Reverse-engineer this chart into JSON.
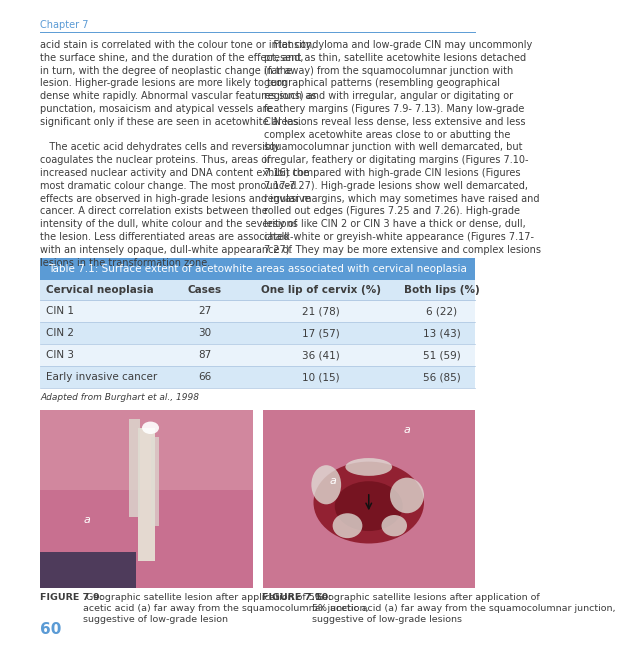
{
  "page_bg": "#ffffff",
  "header_text": "Chapter 7",
  "header_color": "#5b9bd5",
  "header_line_color": "#5b9bd5",
  "body_text_color": "#3d3d3d",
  "body_font_size": 7.0,
  "col1_text": "acid stain is correlated with the colour tone or intensity,\nthe surface shine, and the duration of the effect, and,\nin turn, with the degree of neoplastic change in the\nlesion. Higher-grade lesions are more likely to turn\ndense white rapidly. Abnormal vascular features such as\npunctation, mosaicism and atypical vessels are\nsignificant only if these are seen in acetowhite areas.\n\n   The acetic acid dehydrates cells and reversibly\ncoagulates the nuclear proteins. Thus, areas of\nincreased nuclear activity and DNA content exhibit the\nmost dramatic colour change. The most pronounced\neffects are observed in high-grade lesions and invasive\ncancer. A direct correlation exists between the\nintensity of the dull, white colour and the severity of\nthe lesion. Less differentiated areas are associated\nwith an intensely opaque, dull-white appearance of\nlesions in the transformation zone.",
  "col2_text": "   Flat condyloma and low-grade CIN may uncommonly\npresent as thin, satellite acetowhite lesions detached\n(far away) from the squamocolumnar junction with\ngeographical patterns (resembling geographical\nregions) and with irregular, angular or digitating or\nfeathery margins (Figures 7.9- 7.13). Many low-grade\nCIN lesions reveal less dense, less extensive and less\ncomplex acetowhite areas close to or abutting the\nsquamocolumnar junction with well demarcated, but\nirregular, feathery or digitating margins (Figures 7.10-\n7.16) compared with high-grade CIN lesions (Figures\n7.17-7.27). High-grade lesions show well demarcated,\nregular margins, which may sometimes have raised and\nrolled out edges (Figures 7.25 and 7.26). High-grade\nlesions like CIN 2 or CIN 3 have a thick or dense, dull,\nchalk-white or greyish-white appearance (Figures 7.17-\n7.27). They may be more extensive and complex lesions",
  "table_header_bg": "#5b9bd5",
  "table_header_text_color": "#ffffff",
  "table_header_title": "Table 7.1: Surface extent of acetowhite areas associated with cervical neoplasia",
  "table_row_bg_even": "#d6e8f7",
  "table_row_bg_odd": "#eaf3fb",
  "table_col_headers": [
    "Cervical neoplasia",
    "Cases",
    "One lip of cervix (%)",
    "Both lips (%)"
  ],
  "table_rows": [
    [
      "CIN 1",
      "27",
      "21 (78)",
      "6 (22)"
    ],
    [
      "CIN 2",
      "30",
      "17 (57)",
      "13 (43)"
    ],
    [
      "CIN 3",
      "87",
      "36 (41)",
      "51 (59)"
    ],
    [
      "Early invasive cancer",
      "66",
      "10 (15)",
      "56 (85)"
    ]
  ],
  "table_note": "Adapted from Burghart et al., 1998",
  "fig1_caption_bold": "FIGURE 7.9:",
  "fig1_caption_text": " Geographic satellite lesion after application of 5%\nacetic acid (a) far away from the squamocolumnar junction,\nsuggestive of low-grade lesion",
  "fig2_caption_bold": "FIGURE 7.10:",
  "fig2_caption_text": " Geographic satellite lesions after application of\n5% acetic acid (a) far away from the squamocolumnar junction,\nsuggestive of low-grade lesions",
  "page_number": "60",
  "page_number_color": "#5b9bd5"
}
